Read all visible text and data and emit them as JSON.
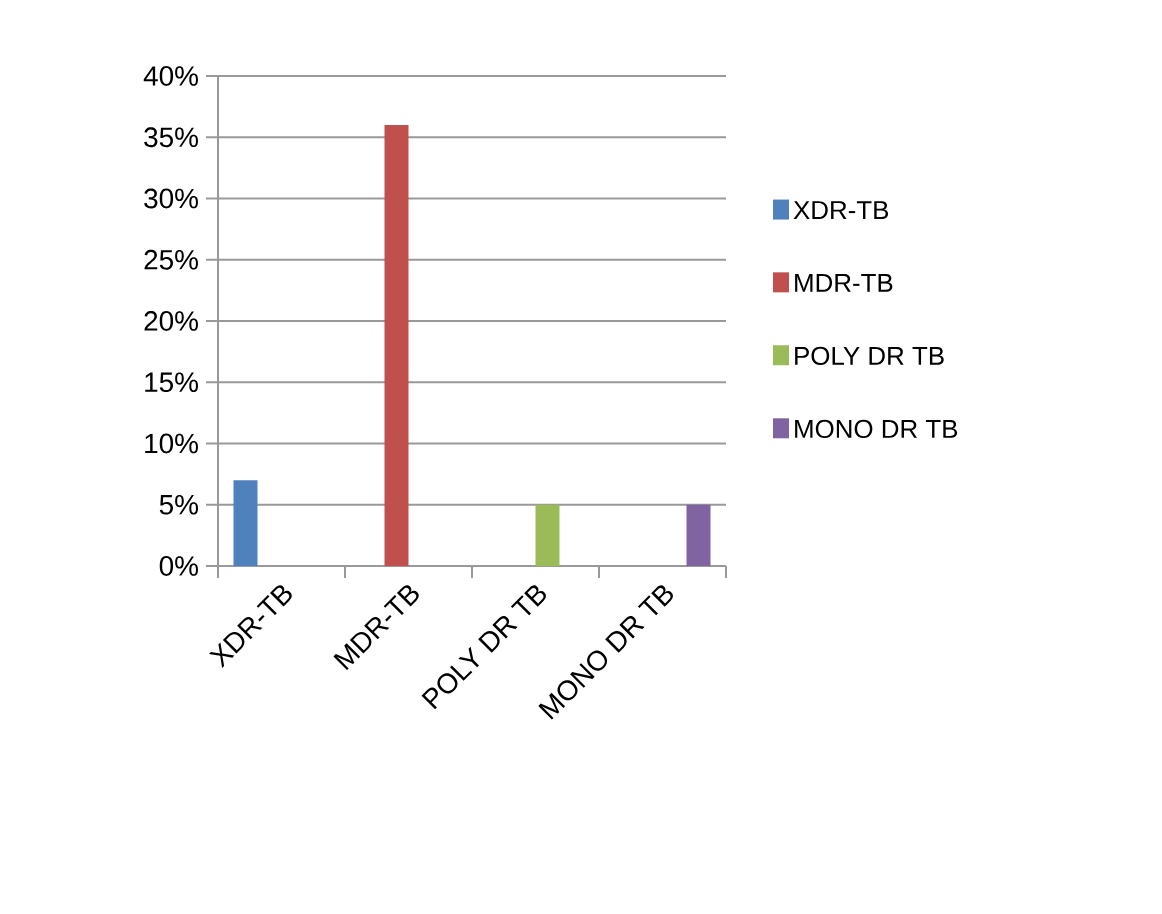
{
  "chart_data": {
    "type": "bar",
    "categories": [
      "XDR-TB",
      "MDR-TB",
      "POLY DR TB",
      "MONO DR TB"
    ],
    "series": [
      {
        "name": "XDR-TB",
        "color": "#4f81bd",
        "values": [
          7,
          null,
          null,
          null
        ]
      },
      {
        "name": "MDR-TB",
        "color": "#c0504d",
        "values": [
          null,
          36,
          null,
          null
        ]
      },
      {
        "name": "POLY DR TB",
        "color": "#9bbb59",
        "values": [
          null,
          null,
          5,
          null
        ]
      },
      {
        "name": "MONO DR TB",
        "color": "#8064a2",
        "values": [
          null,
          null,
          null,
          5
        ]
      }
    ],
    "ylim": [
      0,
      40
    ],
    "yticks": [
      {
        "value": 0,
        "label": "0%"
      },
      {
        "value": 5,
        "label": "5%"
      },
      {
        "value": 10,
        "label": "10%"
      },
      {
        "value": 15,
        "label": "15%"
      },
      {
        "value": 20,
        "label": "20%"
      },
      {
        "value": 25,
        "label": "25%"
      },
      {
        "value": 30,
        "label": "30%"
      },
      {
        "value": 35,
        "label": "35%"
      },
      {
        "value": 40,
        "label": "40%"
      }
    ],
    "grid": "y",
    "legend": "right"
  }
}
